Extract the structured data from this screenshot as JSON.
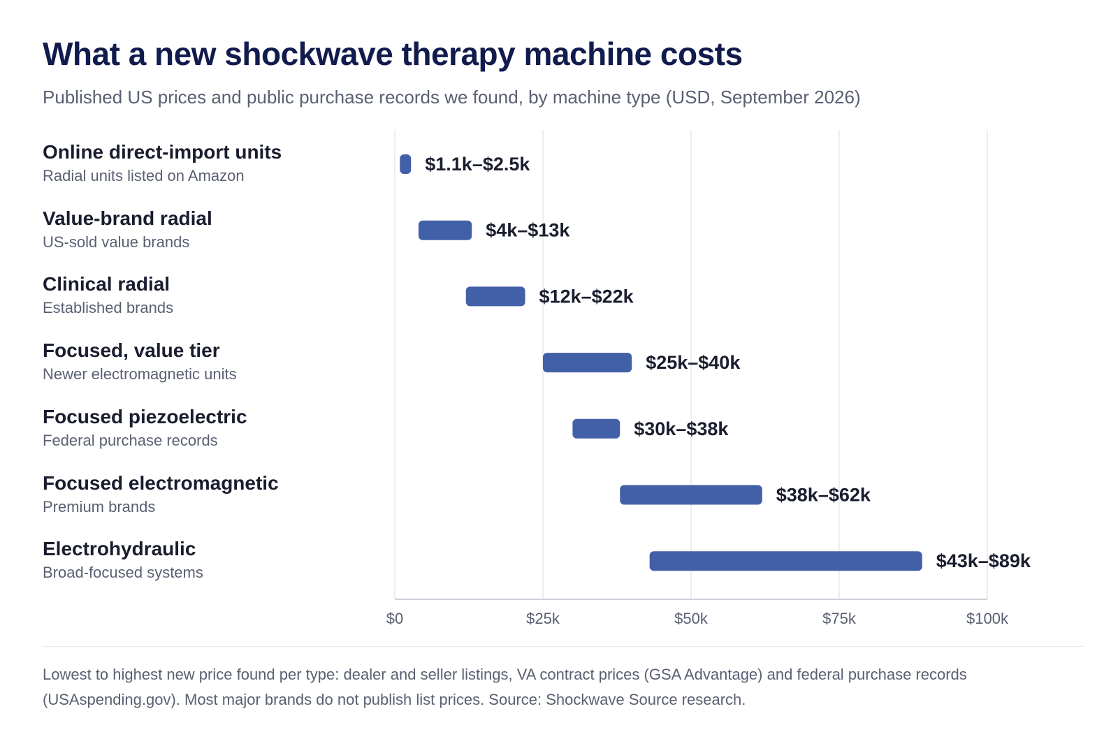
{
  "title": "What a new shockwave therapy machine costs",
  "subtitle": "Published US prices and public purchase records we found, by machine type (USD, September 2026)",
  "rows": [
    {
      "name": "Online direct-import units",
      "sub": "Radial units listed on Amazon"
    },
    {
      "name": "Value-brand radial",
      "sub": "US-sold value brands"
    },
    {
      "name": "Clinical radial",
      "sub": "Established brands"
    },
    {
      "name": "Focused, value tier",
      "sub": "Newer electromagnetic units"
    },
    {
      "name": "Focused piezoelectric",
      "sub": "Federal purchase records"
    },
    {
      "name": "Focused electromagnetic",
      "sub": "Premium brands"
    },
    {
      "name": "Electrohydraulic",
      "sub": "Broad-focused systems"
    }
  ],
  "chart_data": {
    "type": "bar",
    "orientation": "horizontal-range",
    "categories": [
      "Online direct-import units",
      "Value-brand radial",
      "Clinical radial",
      "Focused, value tier",
      "Focused piezoelectric",
      "Focused electromagnetic",
      "Electrohydraulic"
    ],
    "ranges": [
      {
        "low": 1100,
        "high": 2500,
        "label": "$1.1k–$2.5k"
      },
      {
        "low": 4000,
        "high": 13000,
        "label": "$4k–$13k"
      },
      {
        "low": 12000,
        "high": 22000,
        "label": "$12k–$22k"
      },
      {
        "low": 25000,
        "high": 40000,
        "label": "$25k–$40k"
      },
      {
        "low": 30000,
        "high": 38000,
        "label": "$30k–$38k"
      },
      {
        "low": 38000,
        "high": 62000,
        "label": "$38k–$62k"
      },
      {
        "low": 43000,
        "high": 89000,
        "label": "$43k–$89k"
      }
    ],
    "xlim": [
      0,
      100000
    ],
    "ticks": [
      {
        "value": 0,
        "label": "$0"
      },
      {
        "value": 25000,
        "label": "$25k"
      },
      {
        "value": 50000,
        "label": "$50k"
      },
      {
        "value": 75000,
        "label": "$75k"
      },
      {
        "value": 100000,
        "label": "$100k"
      }
    ],
    "grid": true,
    "bar_color": "#4260a8"
  },
  "note": "Lowest to highest new price found per type: dealer and seller listings, VA contract prices (GSA Advantage) and federal purchase records (USAspending.gov). Most major brands do not publish list prices. Source: Shockwave Source research."
}
